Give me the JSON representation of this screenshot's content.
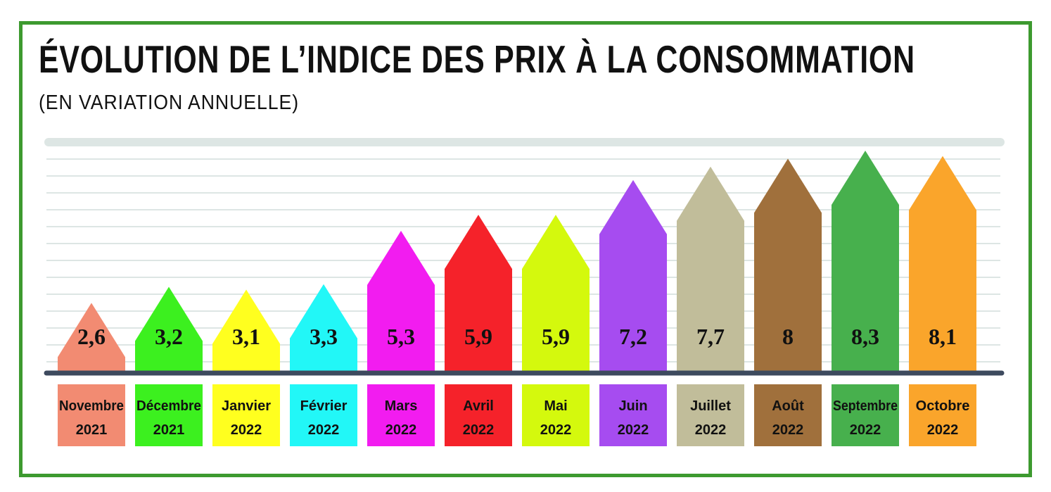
{
  "title": "ÉVOLUTION DE L’INDICE DES PRIX À LA CONSOMMATION",
  "subtitle": "(EN VARIATION ANNUELLE)",
  "chart_data": {
    "type": "bar",
    "style": "house-shaped bars with value labels",
    "categories": [
      [
        "Novembre",
        "2021"
      ],
      [
        "Décembre",
        "2021"
      ],
      [
        "Janvier",
        "2022"
      ],
      [
        "Février",
        "2022"
      ],
      [
        "Mars",
        "2022"
      ],
      [
        "Avril",
        "2022"
      ],
      [
        "Mai",
        "2022"
      ],
      [
        "Juin",
        "2022"
      ],
      [
        "Juillet",
        "2022"
      ],
      [
        "Août",
        "2022"
      ],
      [
        "Septembre",
        "2022"
      ],
      [
        "Octobre",
        "2022"
      ]
    ],
    "values": [
      2.6,
      3.2,
      3.1,
      3.3,
      5.3,
      5.9,
      5.9,
      7.2,
      7.7,
      8,
      8.3,
      8.1
    ],
    "value_labels": [
      "2,6",
      "3,2",
      "3,1",
      "3,3",
      "5,3",
      "5,9",
      "5,9",
      "7,2",
      "7,7",
      "8",
      "8,3",
      "8,1"
    ],
    "colors": [
      "#f28b72",
      "#3cf01f",
      "#ffff1f",
      "#22f7f7",
      "#f21cf0",
      "#f5222a",
      "#d4f90d",
      "#a64cf0",
      "#c1bd9a",
      "#a0703c",
      "#47b04d",
      "#faa52b"
    ],
    "grid": true,
    "gridline_color": "#dde6e4",
    "axis_color": "#3d4a5e",
    "frame_color": "#3d9a2f"
  }
}
